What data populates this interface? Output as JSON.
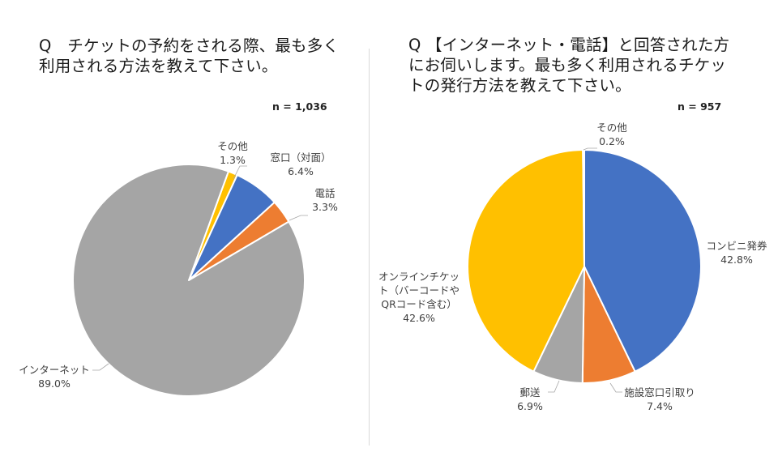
{
  "chart_data": [
    {
      "type": "pie",
      "title_lines": [
        "Q　チケットの予約をされる際、最も多く",
        "利用される方法を教えて下さい。"
      ],
      "sample_size": "n = 1,036",
      "start_angle_deg": 20,
      "slices": [
        {
          "label": "その他",
          "value": 1.3,
          "value_label": "1.3%",
          "color": "#FFC000"
        },
        {
          "label": "窓口（対面）",
          "value": 6.4,
          "value_label": "6.4%",
          "color": "#4472C4"
        },
        {
          "label": "電話",
          "value": 3.3,
          "value_label": "3.3%",
          "color": "#ED7D31"
        },
        {
          "label": "インターネット",
          "value": 89.0,
          "value_label": "89.0%",
          "color": "#A5A5A5"
        }
      ]
    },
    {
      "type": "pie",
      "title_lines": [
        "Q 【インターネット・電話】と回答された方",
        "にお伺いします。最も多く利用されるチケッ",
        "トの発行方法を教えて下さい。"
      ],
      "sample_size": "n = 957",
      "start_angle_deg": 0,
      "slices": [
        {
          "label": "コンビニ発券",
          "value": 42.8,
          "value_label": "42.8%",
          "color": "#4472C4"
        },
        {
          "label": "施設窓口引取り",
          "value": 7.4,
          "value_label": "7.4%",
          "color": "#ED7D31"
        },
        {
          "label": "郵送",
          "value": 6.9,
          "value_label": "6.9%",
          "color": "#A5A5A5"
        },
        {
          "label": "オンラインチケット（バーコードやQRコード含む）",
          "label_lines": [
            "オンラインチケッ",
            "ト（バーコードや",
            "QRコード含む）"
          ],
          "value": 42.6,
          "value_label": "42.6%",
          "color": "#FFC000"
        },
        {
          "label": "その他",
          "value": 0.2,
          "value_label": "0.2%",
          "color": "#5B9BD5"
        }
      ]
    }
  ]
}
